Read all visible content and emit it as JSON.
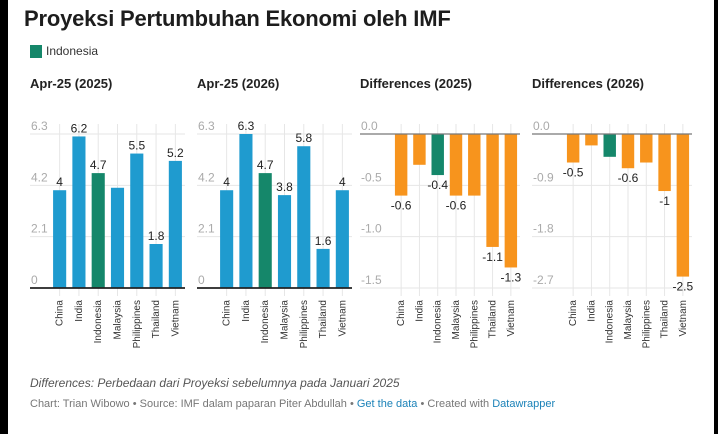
{
  "title": "Proyeksi Pertumbuhan Ekonomi oleh IMF",
  "legend": {
    "label": "Indonesia",
    "color": "#15876a"
  },
  "colors": {
    "default_bar": "#1f9bcf",
    "highlight_bar": "#15876a",
    "diff_bar": "#f7941d",
    "grid": "#e6e6e6",
    "axis": "#222222",
    "link": "#1b82b8"
  },
  "footer": {
    "note": "Differences: Perbedaan dari Proyeksi sebelumnya pada Januari 2025",
    "chart_by": "Chart: Trian Wibowo",
    "source": "Source: IMF dalam paparan Piter Abdullah",
    "get_data": "Get the data",
    "created_with": "Created with",
    "tool": "Datawrapper",
    "sep": " • "
  },
  "chart_data": [
    {
      "type": "bar",
      "title": "Apr-25 (2025)",
      "categories": [
        "China",
        "India",
        "Indonesia",
        "Malaysia",
        "Philippines",
        "Thailand",
        "Vietnam"
      ],
      "values": [
        4,
        6.2,
        4.7,
        4.1,
        5.5,
        1.8,
        5.2
      ],
      "labels": [
        "4",
        "6.2",
        "4.7",
        "",
        "5.5",
        "1.8",
        "5.2"
      ],
      "highlight": "Indonesia",
      "ylim": [
        0,
        6.3
      ],
      "yticks": [
        "6.3",
        "4.2",
        "2.1",
        "0"
      ],
      "ytick_values": [
        6.3,
        4.2,
        2.1,
        0
      ],
      "grid": true
    },
    {
      "type": "bar",
      "title": "Apr-25 (2026)",
      "categories": [
        "China",
        "India",
        "Indonesia",
        "Malaysia",
        "Philippines",
        "Thailand",
        "Vietnam"
      ],
      "values": [
        4,
        6.3,
        4.7,
        3.8,
        5.8,
        1.6,
        4
      ],
      "labels": [
        "4",
        "6.3",
        "4.7",
        "3.8",
        "5.8",
        "1.6",
        "4"
      ],
      "highlight": "Indonesia",
      "ylim": [
        0,
        6.3
      ],
      "yticks": [
        "6.3",
        "4.2",
        "2.1",
        "0"
      ],
      "ytick_values": [
        6.3,
        4.2,
        2.1,
        0
      ],
      "grid": true
    },
    {
      "type": "bar",
      "title": "Differences (2025)",
      "categories": [
        "China",
        "India",
        "Indonesia",
        "Malaysia",
        "Philippines",
        "Thailand",
        "Vietnam"
      ],
      "values": [
        -0.6,
        -0.3,
        -0.4,
        -0.6,
        -0.6,
        -1.1,
        -1.3
      ],
      "labels": [
        "-0.6",
        "",
        "-0.4",
        "-0.6",
        "",
        "-1.1",
        "-1.3"
      ],
      "highlight": "Indonesia",
      "ylim": [
        -1.5,
        0
      ],
      "yticks": [
        "0.0",
        "-0.5",
        "-1.0",
        "-1.5"
      ],
      "ytick_values": [
        0,
        -0.5,
        -1.0,
        -1.5
      ],
      "grid": true
    },
    {
      "type": "bar",
      "title": "Differences (2026)",
      "categories": [
        "China",
        "India",
        "Indonesia",
        "Malaysia",
        "Philippines",
        "Thailand",
        "Vietnam"
      ],
      "values": [
        -0.5,
        -0.2,
        -0.4,
        -0.6,
        -0.5,
        -1,
        -2.5
      ],
      "labels": [
        "-0.5",
        "",
        "",
        "-0.6",
        "",
        "-1",
        "-2.5"
      ],
      "highlight": "Indonesia",
      "ylim": [
        -2.7,
        0
      ],
      "yticks": [
        "0.0",
        "-0.9",
        "-1.8",
        "-2.7"
      ],
      "ytick_values": [
        0,
        -0.9,
        -1.8,
        -2.7
      ],
      "grid": true
    }
  ]
}
